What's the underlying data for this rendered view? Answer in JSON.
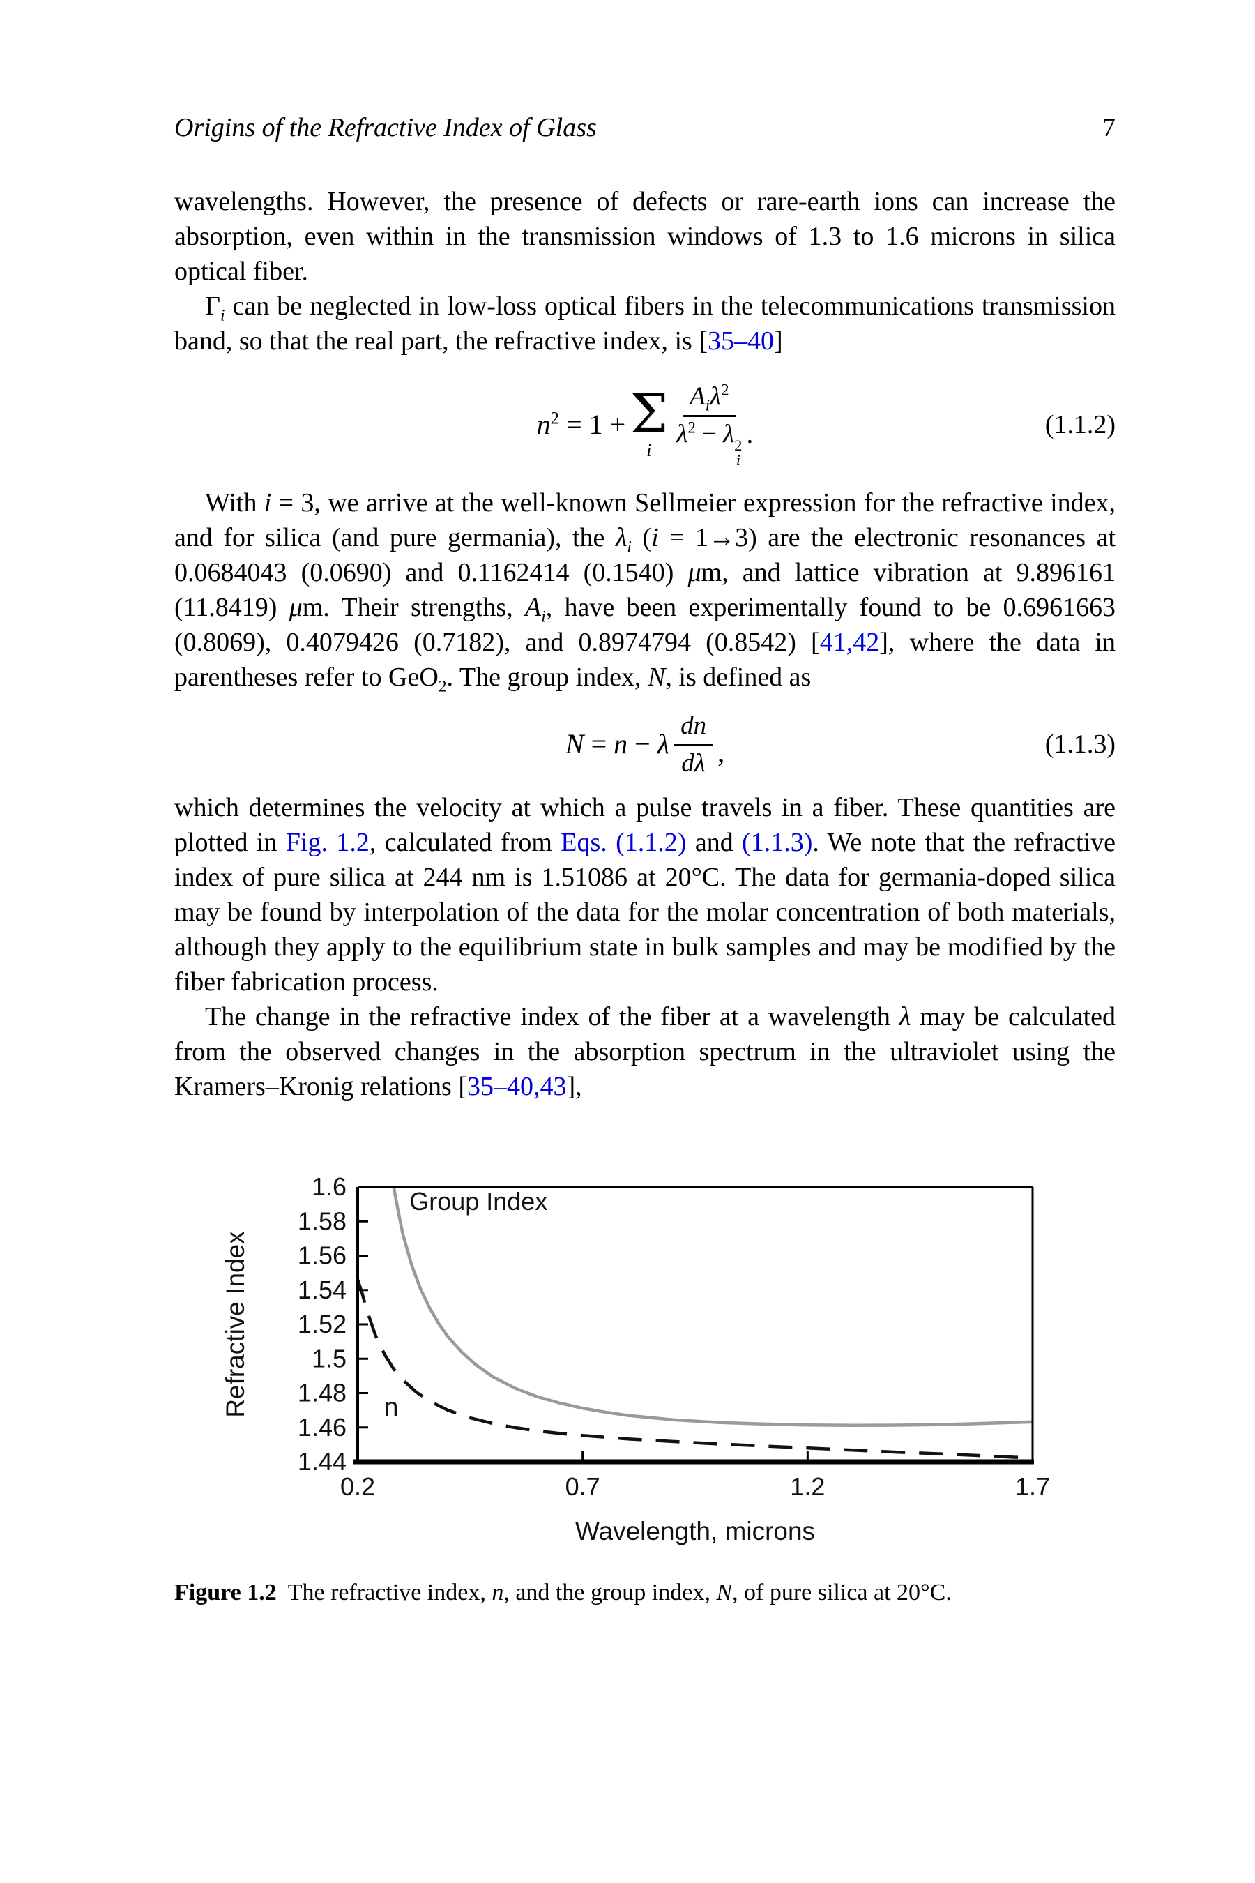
{
  "page": {
    "header_title": "Origins of the Refractive Index of Glass",
    "page_number": "7"
  },
  "content": {
    "p1": [
      {
        "s": "wavelengths. However, the presence of defects or rare-earth ions can increase the absorption, even within in the transmission windows of 1.3 to 1.6 microns in silica optical fiber."
      }
    ],
    "p2": [
      {
        "s": "Γ"
      },
      {
        "s": "i",
        "style": "isub"
      },
      {
        "s": " can be neglected in low-loss optical fibers in the telecommunications transmission band, so that the real part, the refractive index, is ["
      },
      {
        "s": "35–40",
        "style": "link"
      },
      {
        "s": "]"
      }
    ],
    "p3": [
      {
        "s": "With "
      },
      {
        "s": "i",
        "style": "i"
      },
      {
        "s": " = 3, we arrive at the well-known Sellmeier expression for the refractive index, and for silica (and pure germania), the "
      },
      {
        "s": "λ",
        "style": "i"
      },
      {
        "s": "i",
        "style": "isub"
      },
      {
        "s": " ("
      },
      {
        "s": "i",
        "style": "i"
      },
      {
        "s": " = 1→3) are the electronic resonances at 0.0684043 (0.0690) and 0.1162414 (0.1540) "
      },
      {
        "s": "μ",
        "style": "i"
      },
      {
        "s": "m, and lattice vibration at 9.896161 (11.8419) "
      },
      {
        "s": "μ",
        "style": "i"
      },
      {
        "s": "m. Their strengths, "
      },
      {
        "s": "A",
        "style": "i"
      },
      {
        "s": "i",
        "style": "isub"
      },
      {
        "s": ", have been experimentally found to be 0.6961663 (0.8069), 0.4079426 (0.7182), and 0.8974794 (0.8542) ["
      },
      {
        "s": "41,42",
        "style": "link"
      },
      {
        "s": "], where the data in parentheses refer to GeO"
      },
      {
        "s": "2",
        "style": "sub"
      },
      {
        "s": ". The group index, "
      },
      {
        "s": "N",
        "style": "i"
      },
      {
        "s": ", is defined as"
      }
    ],
    "p4": [
      {
        "s": "which determines the velocity at which a pulse travels in a fiber. These quantities are plotted in "
      },
      {
        "s": "Fig. 1.2",
        "style": "link"
      },
      {
        "s": ", calculated from "
      },
      {
        "s": "Eqs. (1.1.2)",
        "style": "link"
      },
      {
        "s": " and "
      },
      {
        "s": "(1.1.3)",
        "style": "link"
      },
      {
        "s": ". We note that the refractive index of pure silica at 244 nm is 1.51086 at 20°C. The data for germania-doped silica may be found by interpolation of the data for the molar concentration of both materials, although they apply to the equilibrium state in bulk samples and may be modified by the fiber fabrication process."
      }
    ],
    "p5": [
      {
        "s": "The change in the refractive index of the fiber at a wavelength "
      },
      {
        "s": "λ",
        "style": "i"
      },
      {
        "s": " may be calculated from the observed changes in the absorption spectrum in the ultraviolet using the Kramers–Kronig relations ["
      },
      {
        "s": "35–40,43",
        "style": "link"
      },
      {
        "s": "],"
      }
    ]
  },
  "equations": {
    "eq112": {
      "lhs": [
        {
          "s": "n",
          "style": "i"
        },
        {
          "s": "2",
          "style": "sup"
        },
        {
          "s": " = 1 + "
        }
      ],
      "sigma": "Σ",
      "sigma_sub": "i",
      "num": [
        {
          "s": "A",
          "style": "i"
        },
        {
          "s": "i",
          "style": "isub"
        },
        {
          "s": "λ",
          "style": "i"
        },
        {
          "s": "2",
          "style": "sup"
        }
      ],
      "den": [
        {
          "s": "λ",
          "style": "i"
        },
        {
          "s": "2",
          "style": "sup"
        },
        {
          "s": " − "
        },
        {
          "s": "λ",
          "style": "i"
        },
        {
          "s": "2|i",
          "style": "stack"
        }
      ],
      "tail": ".",
      "number": "(1.1.2)"
    },
    "eq113": {
      "lhs": [
        {
          "s": "N",
          "style": "i"
        },
        {
          "s": " = "
        },
        {
          "s": "n",
          "style": "i"
        },
        {
          "s": " − "
        },
        {
          "s": "λ",
          "style": "i"
        }
      ],
      "num": [
        {
          "s": "dn",
          "style": "i"
        }
      ],
      "den": [
        {
          "s": "dλ",
          "style": "i"
        }
      ],
      "tail": ",",
      "number": "(1.1.3)"
    }
  },
  "figure": {
    "caption": [
      {
        "s": "Figure 1.2",
        "style": "b"
      },
      {
        "s": "The refractive index, "
      },
      {
        "s": "n",
        "style": "i"
      },
      {
        "s": ", and the group index, "
      },
      {
        "s": "N",
        "style": "i"
      },
      {
        "s": ", of pure silica at 20°C."
      }
    ]
  },
  "chart_data": {
    "type": "line",
    "title": "",
    "xlabel": "Wavelength, microns",
    "ylabel": "Refractive Index",
    "xlim": [
      0.2,
      1.7
    ],
    "ylim": [
      1.44,
      1.6
    ],
    "xticks": [
      0.2,
      0.7,
      1.2,
      1.7
    ],
    "xtick_labels": [
      "0.2",
      "0.7",
      "1.2",
      "1.7"
    ],
    "yticks": [
      1.44,
      1.46,
      1.48,
      1.5,
      1.52,
      1.54,
      1.56,
      1.58,
      1.6
    ],
    "ytick_labels": [
      "1.44",
      "1.46",
      "1.48",
      "1.5",
      "1.52",
      "1.54",
      "1.56",
      "1.58",
      "1.6"
    ],
    "grid": false,
    "legend_position": "inline-labels",
    "series": [
      {
        "name": "Group Index",
        "color": "#9a9a9a",
        "line_style": "solid",
        "label_pos": {
          "x": 0.315,
          "y": 1.5865
        },
        "points": [
          [
            0.255,
            1.655
          ],
          [
            0.26,
            1.64
          ],
          [
            0.27,
            1.617
          ],
          [
            0.28,
            1.6
          ],
          [
            0.29,
            1.586
          ],
          [
            0.3,
            1.573
          ],
          [
            0.32,
            1.5545
          ],
          [
            0.34,
            1.5405
          ],
          [
            0.36,
            1.5295
          ],
          [
            0.38,
            1.5205
          ],
          [
            0.4,
            1.513
          ],
          [
            0.43,
            1.5042
          ],
          [
            0.46,
            1.497
          ],
          [
            0.5,
            1.4895
          ],
          [
            0.55,
            1.4828
          ],
          [
            0.6,
            1.4778
          ],
          [
            0.65,
            1.4741
          ],
          [
            0.7,
            1.4712
          ],
          [
            0.75,
            1.4689
          ],
          [
            0.8,
            1.467
          ],
          [
            0.9,
            1.4645
          ],
          [
            1.0,
            1.4629
          ],
          [
            1.1,
            1.462
          ],
          [
            1.2,
            1.4614
          ],
          [
            1.3,
            1.4612
          ],
          [
            1.4,
            1.4613
          ],
          [
            1.5,
            1.4617
          ],
          [
            1.6,
            1.4624
          ],
          [
            1.7,
            1.4632
          ]
        ]
      },
      {
        "name": "n",
        "color": "#121212",
        "line_style": "dashed",
        "label_pos": {
          "x": 0.258,
          "y": 1.4665
        },
        "points": [
          [
            0.2,
            1.546
          ],
          [
            0.21,
            1.538
          ],
          [
            0.22,
            1.5285
          ],
          [
            0.24,
            1.5133
          ],
          [
            0.26,
            1.5024
          ],
          [
            0.28,
            1.4941
          ],
          [
            0.3,
            1.4878
          ],
          [
            0.33,
            1.4806
          ],
          [
            0.36,
            1.4753
          ],
          [
            0.4,
            1.4701
          ],
          [
            0.45,
            1.4656
          ],
          [
            0.5,
            1.4623
          ],
          [
            0.55,
            1.4599
          ],
          [
            0.6,
            1.458
          ],
          [
            0.65,
            1.4565
          ],
          [
            0.7,
            1.4553
          ],
          [
            0.8,
            1.4533
          ],
          [
            0.9,
            1.4518
          ],
          [
            1.0,
            1.4504
          ],
          [
            1.1,
            1.4492
          ],
          [
            1.2,
            1.448
          ],
          [
            1.3,
            1.4468
          ],
          [
            1.4,
            1.4456
          ],
          [
            1.5,
            1.4446
          ],
          [
            1.6,
            1.4434
          ],
          [
            1.7,
            1.4421
          ]
        ]
      }
    ]
  }
}
